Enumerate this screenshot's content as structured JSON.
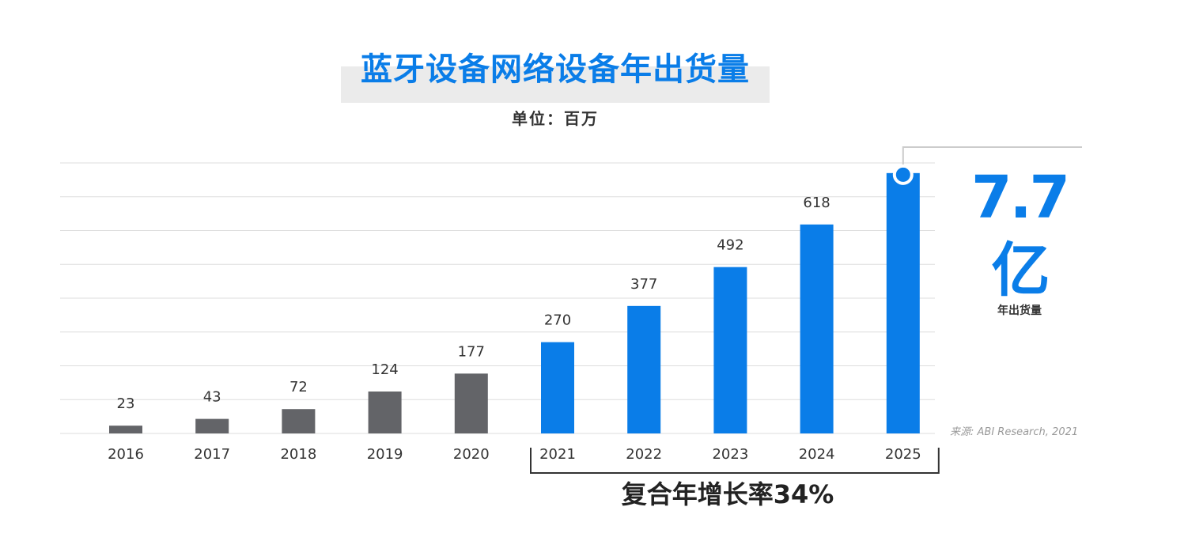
{
  "chart_data": {
    "type": "bar",
    "title": "蓝牙设备网络设备年出货量",
    "subtitle": "单位：百万",
    "xlabel": "",
    "ylabel": "",
    "categories": [
      "2016",
      "2017",
      "2018",
      "2019",
      "2020",
      "2021",
      "2022",
      "2023",
      "2024",
      "2025"
    ],
    "values": [
      23,
      43,
      72,
      124,
      177,
      270,
      377,
      492,
      618,
      770
    ],
    "data_labels": [
      "23",
      "43",
      "72",
      "124",
      "177",
      "270",
      "377",
      "492",
      "618",
      ""
    ],
    "ylim": [
      0,
      800
    ],
    "grid": true,
    "colors": {
      "historical": "#636468",
      "forecast": "#0a7de8",
      "grid": "#dddddd",
      "bracket": "#333333",
      "callout": "#cccccc"
    },
    "historical_count": 5,
    "highlight": {
      "value_text": "7.7亿",
      "label": "年出货量"
    },
    "cagr_text": "复合年增长率34%",
    "source": "来源: ABI Research, 2021"
  }
}
